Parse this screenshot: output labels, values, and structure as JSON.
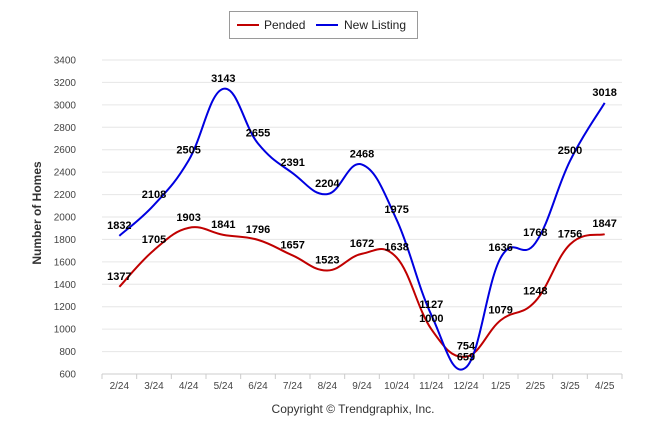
{
  "chart_data": {
    "type": "line",
    "title": "",
    "xlabel": "",
    "ylabel": "Number of Homes",
    "ylim": [
      600,
      3400
    ],
    "yticks": [
      600,
      800,
      1000,
      1200,
      1400,
      1600,
      1800,
      2000,
      2200,
      2400,
      2600,
      2800,
      3000,
      3200,
      3400
    ],
    "grid": true,
    "legend_position": "top-center",
    "categories": [
      "2/24",
      "3/24",
      "4/24",
      "5/24",
      "6/24",
      "7/24",
      "8/24",
      "9/24",
      "10/24",
      "11/24",
      "12/24",
      "1/25",
      "2/25",
      "3/25",
      "4/25"
    ],
    "series": [
      {
        "name": "Pended",
        "color": "#c00000",
        "values": [
          1377,
          1705,
          1903,
          1841,
          1796,
          1657,
          1523,
          1672,
          1638,
          1000,
          754,
          1079,
          1248,
          1756,
          1847
        ]
      },
      {
        "name": "New Listing",
        "color": "#0000e0",
        "values": [
          1832,
          2108,
          2505,
          3143,
          2655,
          2391,
          2204,
          2468,
          1975,
          1127,
          659,
          1636,
          1768,
          2500,
          3018
        ]
      }
    ],
    "footer": "Copyright © Trendgraphix, Inc."
  }
}
